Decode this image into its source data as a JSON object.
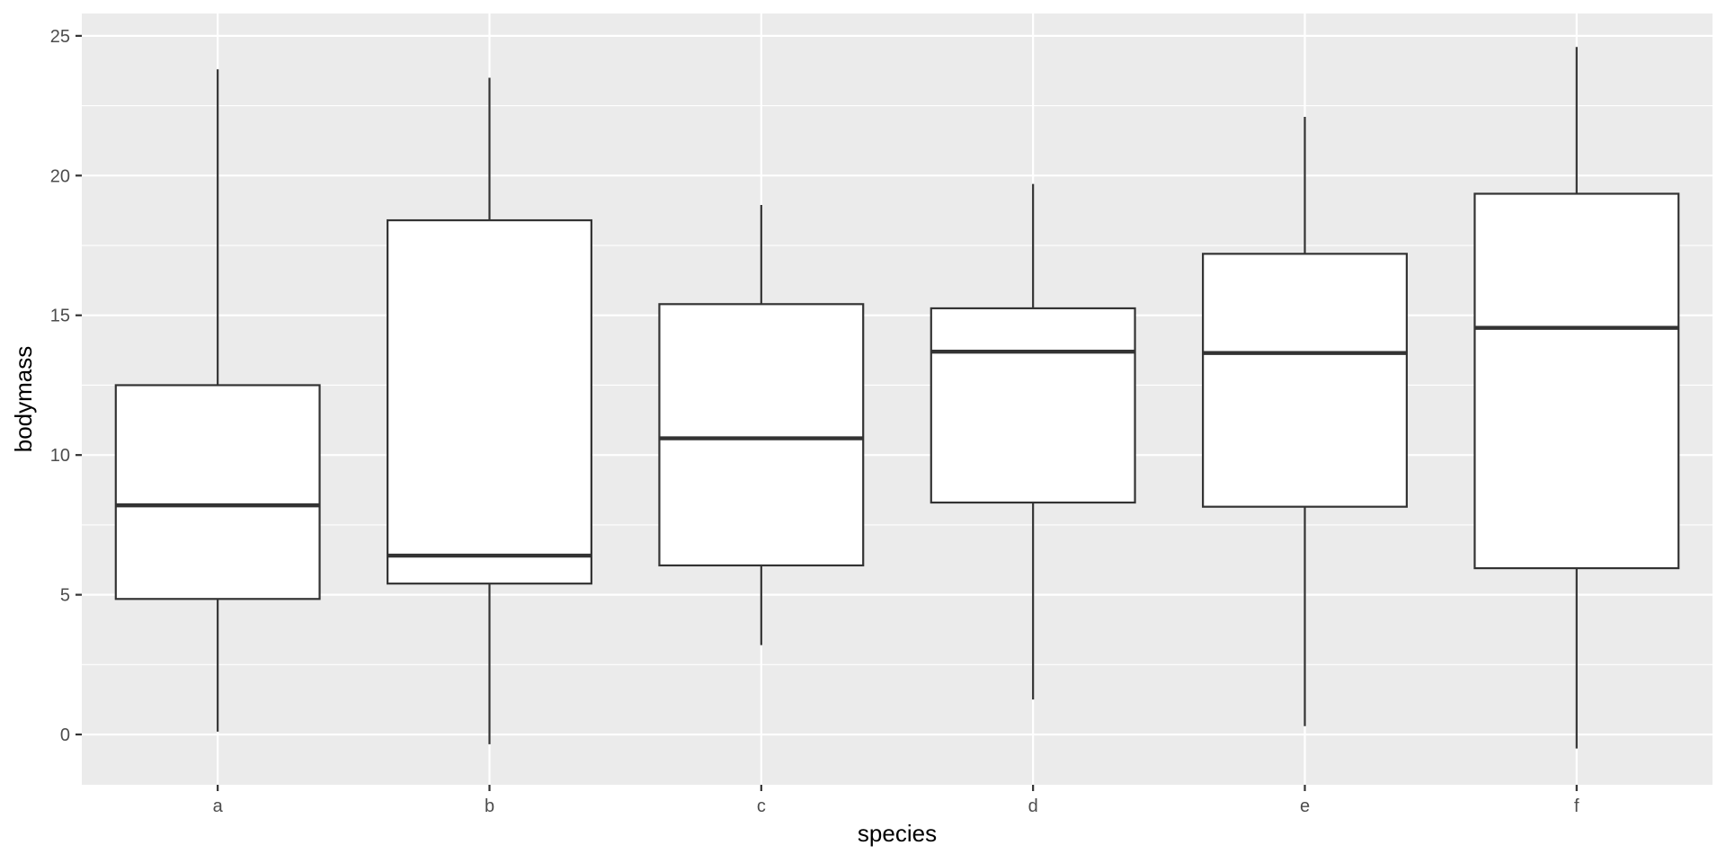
{
  "chart_data": {
    "type": "boxplot",
    "title": "",
    "xlabel": "species",
    "ylabel": "bodymass",
    "ylim": [
      -1.8,
      25.8
    ],
    "yticks": [
      0,
      5,
      10,
      15,
      20,
      25
    ],
    "grid": true,
    "legend": "none",
    "categories": [
      "a",
      "b",
      "c",
      "d",
      "e",
      "f"
    ],
    "boxes": [
      {
        "category": "a",
        "whisker_low": 0.1,
        "q1": 4.85,
        "median": 8.2,
        "q3": 12.5,
        "whisker_high": 23.8
      },
      {
        "category": "b",
        "whisker_low": -0.35,
        "q1": 5.4,
        "median": 6.4,
        "q3": 18.4,
        "whisker_high": 23.5
      },
      {
        "category": "c",
        "whisker_low": 3.2,
        "q1": 6.05,
        "median": 10.6,
        "q3": 15.4,
        "whisker_high": 18.95
      },
      {
        "category": "d",
        "whisker_low": 1.25,
        "q1": 8.3,
        "median": 13.7,
        "q3": 15.25,
        "whisker_high": 19.7
      },
      {
        "category": "e",
        "whisker_low": 0.3,
        "q1": 8.15,
        "median": 13.65,
        "q3": 17.2,
        "whisker_high": 22.1
      },
      {
        "category": "f",
        "whisker_low": -0.5,
        "q1": 5.95,
        "median": 14.55,
        "q3": 19.35,
        "whisker_high": 24.6
      }
    ],
    "colors": {
      "panel_background": "#ebebeb",
      "grid_major": "#ffffff",
      "grid_minor": "#ffffff",
      "box_fill": "#ffffff",
      "box_stroke": "#333333",
      "tick_text": "#4d4d4d",
      "axis_title_text": "#000000"
    }
  }
}
